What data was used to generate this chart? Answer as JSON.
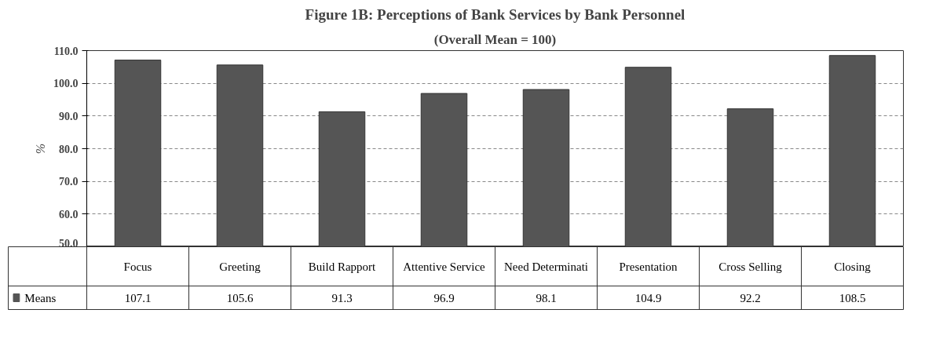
{
  "chart_data": {
    "type": "bar",
    "title": "Figure 1B: Perceptions of Bank Services by Bank Personnel",
    "subtitle": "(Overall Mean = 100)",
    "ylabel": "%",
    "categories": [
      "Focus",
      "Greeting",
      "Build Rapport",
      "Attentive Service",
      "Need Determinati",
      "Presentation",
      "Cross Selling",
      "Closing"
    ],
    "series": [
      {
        "name": "Means",
        "color": "#555555",
        "values": [
          107.1,
          105.6,
          91.3,
          96.9,
          98.1,
          104.9,
          92.2,
          108.5
        ]
      }
    ],
    "ylim": [
      50,
      110
    ],
    "yticks": [
      {
        "value": 50,
        "label": "50.0"
      },
      {
        "value": 60,
        "label": "60.0"
      },
      {
        "value": 70,
        "label": "70.0"
      },
      {
        "value": 80,
        "label": "80.0"
      },
      {
        "value": 90,
        "label": "90.0"
      },
      {
        "value": 100,
        "label": "100.0"
      },
      {
        "value": 110,
        "label": "110.0"
      }
    ],
    "grid": "y",
    "legend": "bottom left",
    "data_labels": true
  }
}
